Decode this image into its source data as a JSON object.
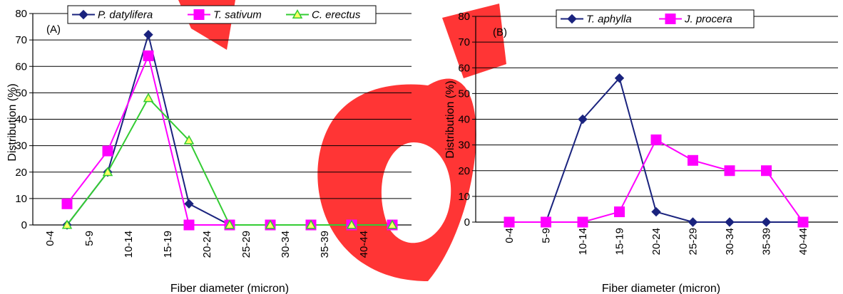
{
  "chart_data": [
    {
      "type": "line",
      "panel_label": "(A)",
      "xlabel": "Fiber diameter (micron)",
      "ylabel": "Distribution (%)",
      "categories": [
        "0-4",
        "5-9",
        "10-14",
        "15-19",
        "20-24",
        "25-29",
        "30-34",
        "35-39",
        "40-44"
      ],
      "yticks": [
        "0",
        "10",
        "20",
        "30",
        "40",
        "50",
        "60",
        "70",
        "80"
      ],
      "ylim": [
        0,
        80
      ],
      "grid": true,
      "legend_position": "top",
      "series": [
        {
          "name": "P. datylifera",
          "color": "#1a237e",
          "marker": "diamond",
          "values": [
            0,
            20,
            72,
            8,
            0,
            0,
            0,
            0,
            0
          ]
        },
        {
          "name": "T. sativum",
          "color": "#ff00ff",
          "marker": "square",
          "values": [
            8,
            28,
            64,
            0,
            0,
            0,
            0,
            0,
            0
          ]
        },
        {
          "name": "C. erectus",
          "color": "#33cc33",
          "marker": "triangle",
          "values": [
            0,
            20,
            48,
            32,
            0,
            0,
            0,
            0,
            0
          ]
        }
      ]
    },
    {
      "type": "line",
      "panel_label": "(B)",
      "xlabel": "Fiber diameter (micron)",
      "ylabel": "Distribution (%)",
      "categories": [
        "0-4",
        "5-9",
        "10-14",
        "15-19",
        "20-24",
        "25-29",
        "30-34",
        "35-39",
        "40-44"
      ],
      "yticks": [
        "0",
        "10",
        "20",
        "30",
        "40",
        "50",
        "60",
        "70",
        "80"
      ],
      "ylim": [
        0,
        80
      ],
      "grid": true,
      "legend_position": "top",
      "series": [
        {
          "name": "T. aphylla",
          "color": "#1a237e",
          "marker": "diamond",
          "values": [
            0,
            0,
            40,
            56,
            4,
            0,
            0,
            0,
            0
          ]
        },
        {
          "name": "J. procera",
          "color": "#ff00ff",
          "marker": "square",
          "values": [
            0,
            0,
            0,
            4,
            32,
            24,
            20,
            20,
            0
          ]
        }
      ]
    }
  ]
}
